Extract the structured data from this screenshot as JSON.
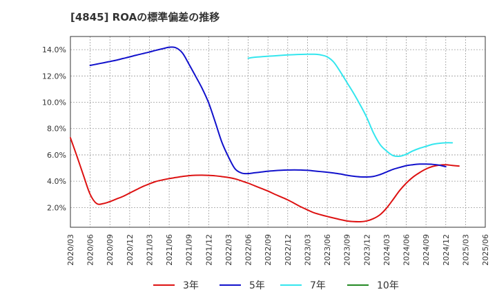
{
  "chart_data": {
    "type": "line",
    "title": "[4845]  ROAの標準偏差の推移",
    "xlabel": "",
    "ylabel": "",
    "ylim": [
      0.5,
      15.0
    ],
    "yticks": [
      2.0,
      4.0,
      6.0,
      8.0,
      10.0,
      12.0,
      14.0
    ],
    "ytick_labels": [
      "2.0%",
      "4.0%",
      "6.0%",
      "8.0%",
      "10.0%",
      "12.0%",
      "14.0%"
    ],
    "categories": [
      "2020/03",
      "2020/06",
      "2020/09",
      "2020/12",
      "2021/03",
      "2021/06",
      "2021/09",
      "2021/12",
      "2022/03",
      "2022/06",
      "2022/09",
      "2022/12",
      "2023/03",
      "2023/06",
      "2023/09",
      "2023/12",
      "2024/03",
      "2024/06",
      "2024/09",
      "2024/12",
      "2025/03",
      "2025/06"
    ],
    "grid": true,
    "legend_position": "bottom",
    "series": [
      {
        "name": "3年",
        "color": "#dd1111",
        "points": [
          [
            0,
            7.3
          ],
          [
            0.33,
            5.9
          ],
          [
            0.67,
            4.4
          ],
          [
            1,
            3.0
          ],
          [
            1.33,
            2.3
          ],
          [
            1.67,
            2.3
          ],
          [
            2,
            2.45
          ],
          [
            2.33,
            2.65
          ],
          [
            2.67,
            2.85
          ],
          [
            3,
            3.1
          ],
          [
            3.33,
            3.35
          ],
          [
            3.67,
            3.6
          ],
          [
            4,
            3.8
          ],
          [
            4.33,
            3.98
          ],
          [
            4.67,
            4.1
          ],
          [
            5,
            4.2
          ],
          [
            5.33,
            4.28
          ],
          [
            5.67,
            4.36
          ],
          [
            6,
            4.42
          ],
          [
            6.33,
            4.45
          ],
          [
            6.67,
            4.46
          ],
          [
            7,
            4.44
          ],
          [
            7.33,
            4.41
          ],
          [
            7.67,
            4.35
          ],
          [
            8,
            4.28
          ],
          [
            8.33,
            4.18
          ],
          [
            8.67,
            4.02
          ],
          [
            9,
            3.85
          ],
          [
            9.33,
            3.65
          ],
          [
            9.67,
            3.45
          ],
          [
            10,
            3.25
          ],
          [
            10.33,
            3.02
          ],
          [
            10.67,
            2.8
          ],
          [
            11,
            2.58
          ],
          [
            11.33,
            2.32
          ],
          [
            11.67,
            2.05
          ],
          [
            12,
            1.82
          ],
          [
            12.33,
            1.6
          ],
          [
            12.67,
            1.45
          ],
          [
            13,
            1.32
          ],
          [
            13.33,
            1.2
          ],
          [
            13.67,
            1.08
          ],
          [
            14,
            0.98
          ],
          [
            14.33,
            0.93
          ],
          [
            14.67,
            0.92
          ],
          [
            15,
            0.98
          ],
          [
            15.33,
            1.15
          ],
          [
            15.67,
            1.45
          ],
          [
            16,
            1.95
          ],
          [
            16.33,
            2.6
          ],
          [
            16.67,
            3.3
          ],
          [
            17,
            3.85
          ],
          [
            17.33,
            4.3
          ],
          [
            17.67,
            4.65
          ],
          [
            18,
            4.93
          ],
          [
            18.33,
            5.12
          ],
          [
            18.67,
            5.22
          ],
          [
            19,
            5.25
          ],
          [
            19.33,
            5.2
          ],
          [
            19.67,
            5.15
          ]
        ]
      },
      {
        "name": "5年",
        "color": "#1111cc",
        "points": [
          [
            1,
            12.8
          ],
          [
            1.33,
            12.9
          ],
          [
            1.67,
            13.0
          ],
          [
            2,
            13.1
          ],
          [
            2.33,
            13.2
          ],
          [
            2.67,
            13.33
          ],
          [
            3,
            13.45
          ],
          [
            3.33,
            13.58
          ],
          [
            3.67,
            13.7
          ],
          [
            4,
            13.82
          ],
          [
            4.33,
            13.95
          ],
          [
            4.67,
            14.07
          ],
          [
            5,
            14.18
          ],
          [
            5.33,
            14.15
          ],
          [
            5.67,
            13.75
          ],
          [
            6,
            12.9
          ],
          [
            6.33,
            12.0
          ],
          [
            6.67,
            11.05
          ],
          [
            7,
            9.95
          ],
          [
            7.33,
            8.5
          ],
          [
            7.67,
            6.95
          ],
          [
            8,
            5.85
          ],
          [
            8.33,
            4.95
          ],
          [
            8.67,
            4.62
          ],
          [
            9,
            4.58
          ],
          [
            9.33,
            4.64
          ],
          [
            9.67,
            4.7
          ],
          [
            10,
            4.76
          ],
          [
            10.33,
            4.8
          ],
          [
            10.67,
            4.83
          ],
          [
            11,
            4.85
          ],
          [
            11.33,
            4.86
          ],
          [
            11.67,
            4.85
          ],
          [
            12,
            4.83
          ],
          [
            12.33,
            4.78
          ],
          [
            12.67,
            4.73
          ],
          [
            13,
            4.68
          ],
          [
            13.33,
            4.62
          ],
          [
            13.67,
            4.55
          ],
          [
            14,
            4.45
          ],
          [
            14.33,
            4.38
          ],
          [
            14.67,
            4.33
          ],
          [
            15,
            4.32
          ],
          [
            15.33,
            4.36
          ],
          [
            15.67,
            4.5
          ],
          [
            16,
            4.7
          ],
          [
            16.33,
            4.9
          ],
          [
            16.67,
            5.05
          ],
          [
            17,
            5.18
          ],
          [
            17.33,
            5.25
          ],
          [
            17.67,
            5.3
          ],
          [
            18,
            5.3
          ],
          [
            18.33,
            5.28
          ],
          [
            18.67,
            5.22
          ],
          [
            19,
            5.1
          ]
        ]
      },
      {
        "name": "7年",
        "color": "#33e6ee",
        "points": [
          [
            9,
            13.35
          ],
          [
            9.33,
            13.42
          ],
          [
            9.67,
            13.46
          ],
          [
            10,
            13.5
          ],
          [
            10.33,
            13.53
          ],
          [
            10.67,
            13.57
          ],
          [
            11,
            13.6
          ],
          [
            11.33,
            13.62
          ],
          [
            11.67,
            13.64
          ],
          [
            12,
            13.65
          ],
          [
            12.33,
            13.65
          ],
          [
            12.67,
            13.6
          ],
          [
            13,
            13.45
          ],
          [
            13.33,
            13.05
          ],
          [
            13.67,
            12.3
          ],
          [
            14,
            11.5
          ],
          [
            14.33,
            10.7
          ],
          [
            14.67,
            9.8
          ],
          [
            15,
            8.85
          ],
          [
            15.33,
            7.7
          ],
          [
            15.67,
            6.8
          ],
          [
            16,
            6.3
          ],
          [
            16.33,
            5.95
          ],
          [
            16.67,
            5.9
          ],
          [
            17,
            6.05
          ],
          [
            17.33,
            6.3
          ],
          [
            17.67,
            6.5
          ],
          [
            18,
            6.65
          ],
          [
            18.33,
            6.8
          ],
          [
            18.67,
            6.88
          ],
          [
            19,
            6.92
          ],
          [
            19.33,
            6.92
          ]
        ]
      },
      {
        "name": "10年",
        "color": "#228822",
        "points": []
      }
    ]
  }
}
